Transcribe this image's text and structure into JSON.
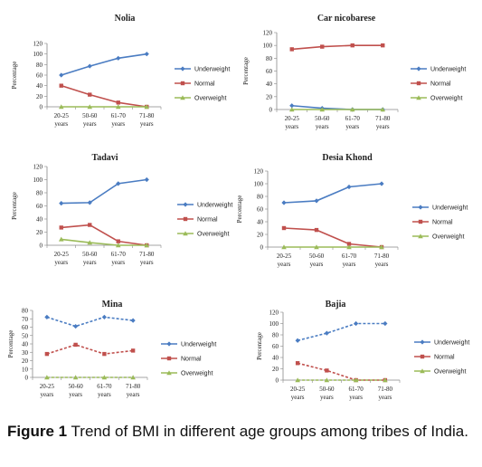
{
  "caption": {
    "label": "Figure 1",
    "text": "Trend of BMI in different age groups among tribes of India."
  },
  "colors": {
    "underweight": "#4a7cc2",
    "normal": "#c0504d",
    "overweight": "#9bbb59",
    "axis": "#888888"
  },
  "chart_data": [
    {
      "type": "line",
      "title": "Nolia",
      "ylabel": "Percentage",
      "ylim": [
        0,
        120
      ],
      "yticks": [
        0,
        20,
        40,
        60,
        80,
        100,
        120
      ],
      "categories": [
        [
          "20-25",
          "years"
        ],
        [
          "50-60",
          "years"
        ],
        [
          "61-70",
          "years"
        ],
        [
          "71-80",
          "years"
        ]
      ],
      "legend": "right",
      "series": [
        {
          "name": "Underweight",
          "values": [
            60,
            77,
            92,
            100
          ]
        },
        {
          "name": "Normal",
          "values": [
            40,
            23,
            8,
            0
          ]
        },
        {
          "name": "Overweight",
          "values": [
            0,
            0,
            0,
            0
          ]
        }
      ]
    },
    {
      "type": "line",
      "title": "Car nicobarese",
      "ylabel": "Percentage",
      "ylim": [
        0,
        120
      ],
      "yticks": [
        0,
        20,
        40,
        60,
        80,
        100,
        120
      ],
      "categories": [
        [
          "20-25",
          "years"
        ],
        [
          "50-60",
          "years"
        ],
        [
          "61-70",
          "years"
        ],
        [
          "71-80",
          "years"
        ]
      ],
      "legend": "right",
      "series": [
        {
          "name": "Underweight",
          "values": [
            6,
            2,
            0,
            0
          ]
        },
        {
          "name": "Normal",
          "values": [
            94,
            98,
            100,
            100
          ]
        },
        {
          "name": "Overweight",
          "values": [
            0,
            0,
            0,
            0
          ]
        }
      ]
    },
    {
      "type": "line",
      "title": "Tadavi",
      "ylabel": "Percentage",
      "ylim": [
        0,
        120
      ],
      "yticks": [
        0,
        20,
        40,
        60,
        80,
        100,
        120
      ],
      "categories": [
        [
          "20-25",
          "years"
        ],
        [
          "50-60",
          "years"
        ],
        [
          "61-70",
          "years"
        ],
        [
          "71-80",
          "years"
        ]
      ],
      "legend": "right",
      "series": [
        {
          "name": "Underweight",
          "values": [
            64,
            65,
            94,
            100
          ]
        },
        {
          "name": "Normal",
          "values": [
            27,
            31,
            6,
            0
          ]
        },
        {
          "name": "Overweight",
          "values": [
            9,
            4,
            0,
            0
          ]
        }
      ]
    },
    {
      "type": "line",
      "title": "Desia Khond",
      "ylabel": "Percentage",
      "ylim": [
        0,
        120
      ],
      "yticks": [
        0,
        20,
        40,
        60,
        80,
        100,
        120
      ],
      "categories": [
        [
          "20-25",
          "years"
        ],
        [
          "50-60",
          "years"
        ],
        [
          "61-70",
          "years"
        ],
        [
          "71-80",
          "years"
        ]
      ],
      "legend": "right",
      "series": [
        {
          "name": "Underweight",
          "values": [
            70,
            73,
            95,
            100
          ]
        },
        {
          "name": "Normal",
          "values": [
            30,
            27,
            5,
            0
          ]
        },
        {
          "name": "Overweight",
          "values": [
            0,
            0,
            0,
            0
          ]
        }
      ]
    },
    {
      "type": "line",
      "title": "Mina",
      "ylabel": "Percentage",
      "ylim": [
        0,
        80
      ],
      "yticks": [
        0,
        10,
        20,
        30,
        40,
        50,
        60,
        70,
        80
      ],
      "categories": [
        [
          "20-25",
          "years"
        ],
        [
          "50-60",
          "years"
        ],
        [
          "61-70",
          "years"
        ],
        [
          "71-80",
          "years"
        ]
      ],
      "legend": "right",
      "series": [
        {
          "name": "Underweight",
          "values": [
            72,
            61,
            72,
            68
          ]
        },
        {
          "name": "Normal",
          "values": [
            28,
            39,
            28,
            32
          ]
        },
        {
          "name": "Overweight",
          "values": [
            0,
            0,
            0,
            0
          ]
        }
      ]
    },
    {
      "type": "line",
      "title": "Bajia",
      "ylabel": "Percentage",
      "ylim": [
        0,
        120
      ],
      "yticks": [
        0,
        20,
        40,
        60,
        80,
        100,
        120
      ],
      "categories": [
        [
          "20-25",
          "years"
        ],
        [
          "50-60",
          "years"
        ],
        [
          "61-70",
          "years"
        ],
        [
          "71-80",
          "years"
        ]
      ],
      "legend": "right",
      "series": [
        {
          "name": "Underweight",
          "values": [
            70,
            83,
            100,
            100
          ]
        },
        {
          "name": "Normal",
          "values": [
            30,
            17,
            0,
            0
          ]
        },
        {
          "name": "Overweight",
          "values": [
            0,
            0,
            0,
            0
          ]
        }
      ]
    }
  ]
}
